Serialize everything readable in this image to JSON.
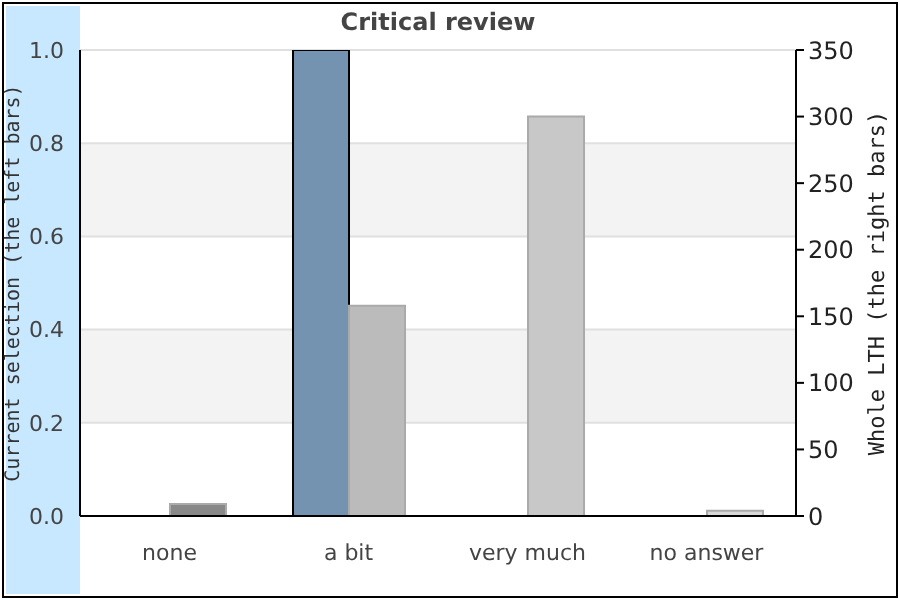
{
  "chart_data": {
    "type": "bar",
    "title": "Critical review",
    "ylabel": "Current selection (the left bars)",
    "y2label": "Whole LTH (the right bars)",
    "categories": [
      "none",
      "a bit",
      "very much",
      "no answer"
    ],
    "series": [
      {
        "color": "#7393b0",
        "values": [
          0,
          1.0,
          0,
          0
        ]
      },
      {
        "axis": "y2",
        "colors": [
          "#888888",
          "#bbbbbb",
          "#c8c8c8",
          "#d8d8d8"
        ],
        "values": [
          9,
          158,
          300,
          4
        ]
      }
    ],
    "ylim": [
      0,
      1
    ],
    "yticks": [
      {
        "value": 0,
        "label": "0.0"
      },
      {
        "value": 0.2,
        "label": "0.2"
      },
      {
        "value": 0.4,
        "label": "0.4"
      },
      {
        "value": 0.6,
        "label": "0.6"
      },
      {
        "value": 0.8,
        "label": "0.8"
      },
      {
        "value": 1,
        "label": "1.0"
      }
    ],
    "y2lim": [
      0,
      350
    ],
    "y2ticks": [
      0,
      50,
      100,
      150,
      200,
      250,
      300,
      350
    ],
    "grid": "y"
  }
}
